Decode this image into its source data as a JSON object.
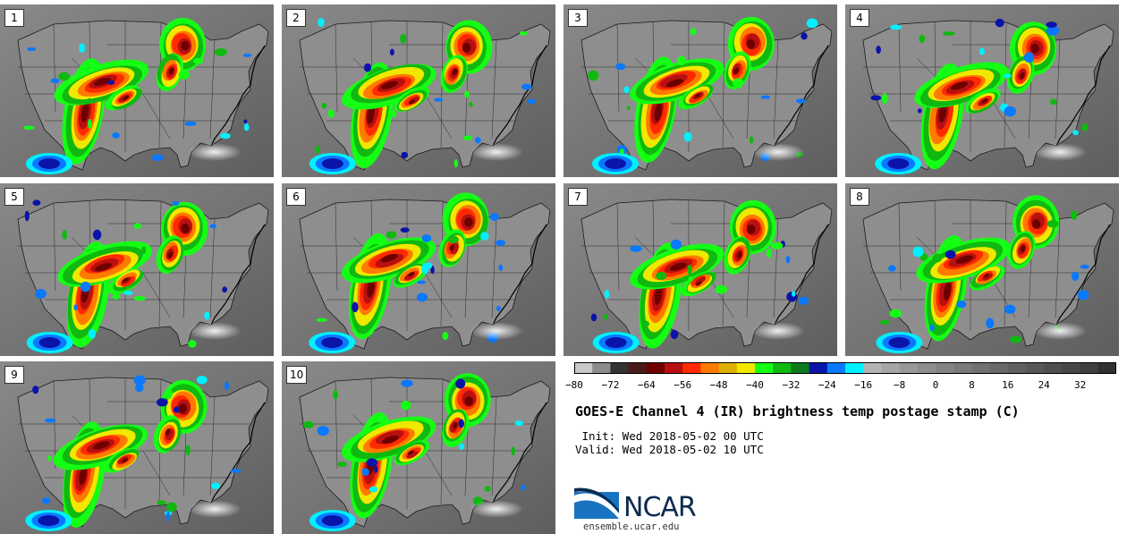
{
  "panels": [
    {
      "label": "1"
    },
    {
      "label": "2"
    },
    {
      "label": "3"
    },
    {
      "label": "4"
    },
    {
      "label": "5"
    },
    {
      "label": "6"
    },
    {
      "label": "7"
    },
    {
      "label": "8"
    },
    {
      "label": "9"
    },
    {
      "label": "10"
    }
  ],
  "colorbar": {
    "ticks": [
      "−80",
      "−72",
      "−64",
      "−56",
      "−48",
      "−40",
      "−32",
      "−24",
      "−16",
      "−8",
      "0",
      "8",
      "16",
      "24",
      "32"
    ],
    "colors": [
      "#c8c8c8",
      "#8c8c8c",
      "#333333",
      "#4a1a1a",
      "#6e0000",
      "#b81010",
      "#ff2a00",
      "#ff7a00",
      "#e0b000",
      "#f0e800",
      "#14ff14",
      "#10b810",
      "#0a7a1a",
      "#0a14a8",
      "#0a78ff",
      "#00f0ff",
      "#b4b4b4",
      "#a6a6a6",
      "#999999",
      "#8e8e8e",
      "#848484",
      "#7a7a7a",
      "#717171",
      "#686868",
      "#5f5f5f",
      "#575757",
      "#4f4f4f",
      "#474747",
      "#3f3f3f",
      "#303030"
    ]
  },
  "title": "GOES-E Channel 4 (IR) brightness temp postage stamp (C)",
  "init": " Init: Wed 2018-05-02 00 UTC",
  "valid": "Valid: Wed 2018-05-02 10 UTC",
  "logo": {
    "text": "NCAR",
    "url": "ensemble.ucar.edu"
  }
}
